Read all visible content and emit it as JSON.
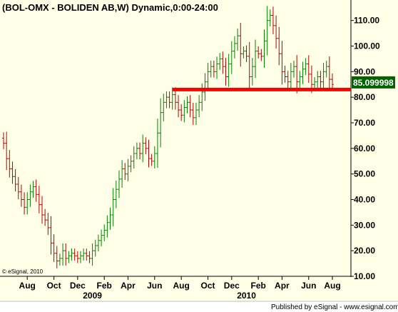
{
  "chart_data": {
    "type": "ohlc",
    "title": "(BOL-OMX - BOLIDEN AB,W) Dynamic,0:00-24:00",
    "copyright": "© eSignal, 2010",
    "footer": "Published by eSignal - www.esignal.com",
    "last_price_label": "85.099998",
    "last_price": 85.1,
    "ylim": [
      10,
      118
    ],
    "y_ticks": [
      {
        "value": 110,
        "label": "110.00"
      },
      {
        "value": 100,
        "label": "100.00"
      },
      {
        "value": 90,
        "label": "90.00"
      },
      {
        "value": 80,
        "label": "80.00"
      },
      {
        "value": 70,
        "label": "70.00"
      },
      {
        "value": 60,
        "label": "60.00"
      },
      {
        "value": 50,
        "label": "50.00"
      },
      {
        "value": 40,
        "label": "40.00"
      },
      {
        "value": 30,
        "label": "30.00"
      },
      {
        "value": 20,
        "label": "20.00"
      },
      {
        "value": 10,
        "label": "10.00"
      }
    ],
    "x_ticks": [
      {
        "week": 8,
        "label": "Aug"
      },
      {
        "week": 17,
        "label": "Oct"
      },
      {
        "week": 25,
        "label": "Dec"
      },
      {
        "week": 34,
        "label": "Feb"
      },
      {
        "week": 42,
        "label": "Apr"
      },
      {
        "week": 51,
        "label": "Jun"
      },
      {
        "week": 60,
        "label": "Aug"
      },
      {
        "week": 69,
        "label": "Oct"
      },
      {
        "week": 77,
        "label": "Dec"
      },
      {
        "week": 86,
        "label": "Feb"
      },
      {
        "week": 94,
        "label": "Apr"
      },
      {
        "week": 103,
        "label": "Jun"
      },
      {
        "week": 111,
        "label": "Aug"
      }
    ],
    "years": [
      {
        "week": 30,
        "label": "2009"
      },
      {
        "week": 82,
        "label": "2010"
      }
    ],
    "support_level": 83,
    "support_from_week": 57,
    "grid": false,
    "close": [
      62,
      56,
      52,
      49,
      46,
      43,
      40,
      37,
      40,
      43,
      45,
      42,
      38,
      34,
      32,
      29,
      23,
      19,
      16,
      17,
      20,
      17,
      18,
      19,
      18,
      17,
      18,
      19,
      18,
      17,
      20,
      22,
      24,
      26,
      28,
      31,
      34,
      40,
      44,
      48,
      52,
      50,
      53,
      55,
      58,
      60,
      58,
      62,
      60,
      56,
      55,
      58,
      66,
      74,
      78,
      80,
      78,
      81,
      78,
      75,
      73,
      76,
      78,
      75,
      72,
      75,
      78,
      82,
      86,
      90,
      92,
      90,
      93,
      95,
      92,
      88,
      93,
      98,
      101,
      104,
      97,
      98,
      96,
      88,
      92,
      98,
      97,
      96,
      102,
      110,
      112,
      108,
      103,
      97,
      90,
      88,
      86,
      90,
      92,
      86,
      88,
      91,
      93,
      89,
      85,
      86,
      88,
      86,
      90,
      92,
      87,
      85
    ]
  }
}
